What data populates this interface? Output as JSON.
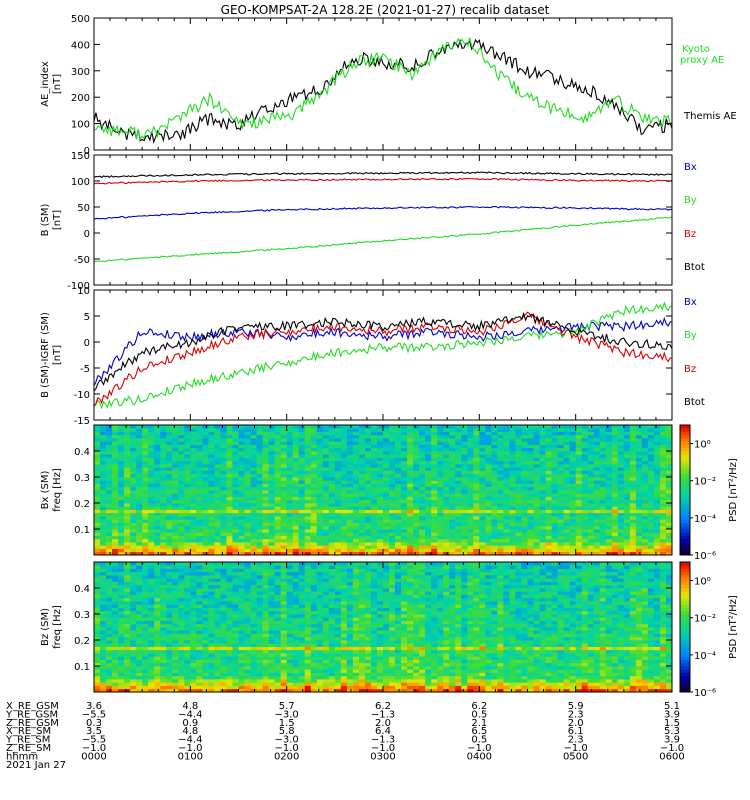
{
  "title": "GEO-KOMPSAT-2A 128.2E (2021-01-27) recalib dataset",
  "chart_data": [
    {
      "type": "line",
      "ylabel_lines": [
        "AE_index",
        "[nT]"
      ],
      "ylim": [
        0,
        500
      ],
      "yticks": [
        0,
        100,
        200,
        300,
        400,
        500
      ],
      "xlim": [
        0,
        6
      ],
      "x": [
        0,
        0.3,
        0.6,
        0.9,
        1.2,
        1.5,
        1.8,
        2.1,
        2.4,
        2.7,
        3.0,
        3.3,
        3.6,
        3.9,
        4.2,
        4.5,
        4.8,
        5.1,
        5.4,
        5.7,
        6.0
      ],
      "series": [
        {
          "name": "Themis AE",
          "color": "#000000",
          "values": [
            120,
            60,
            50,
            60,
            120,
            90,
            160,
            200,
            240,
            350,
            330,
            320,
            380,
            410,
            360,
            300,
            270,
            230,
            180,
            70,
            100
          ]
        },
        {
          "name": "Kyoto proxy AE",
          "color": "#22dd22",
          "values": [
            90,
            70,
            60,
            130,
            190,
            100,
            110,
            140,
            230,
            330,
            350,
            290,
            380,
            420,
            280,
            200,
            150,
            120,
            190,
            120,
            110
          ]
        }
      ],
      "legend_labels": [
        {
          "lines": [
            "Kyoto",
            "proxy AE"
          ],
          "color": "#22dd22"
        },
        {
          "lines": [
            "Themis AE"
          ],
          "color": "#000000"
        }
      ]
    },
    {
      "type": "line",
      "ylabel_lines": [
        "B (SM)",
        "[nT]"
      ],
      "ylim": [
        -100,
        150
      ],
      "yticks": [
        -100,
        -50,
        0,
        50,
        100,
        150
      ],
      "xlim": [
        0,
        6
      ],
      "x": [
        0,
        1,
        2,
        3,
        4,
        5,
        6
      ],
      "series": [
        {
          "name": "Bx",
          "color": "#0000cc",
          "values": [
            27,
            38,
            45,
            48,
            50,
            48,
            45
          ]
        },
        {
          "name": "By",
          "color": "#22dd22",
          "values": [
            -55,
            -42,
            -30,
            -15,
            -2,
            15,
            30
          ]
        },
        {
          "name": "Bz",
          "color": "#dd0000",
          "values": [
            95,
            100,
            102,
            103,
            104,
            101,
            100
          ]
        },
        {
          "name": "Btot",
          "color": "#000000",
          "values": [
            108,
            112,
            114,
            115,
            116,
            114,
            112
          ]
        }
      ]
    },
    {
      "type": "line",
      "ylabel_lines": [
        "B (SM)-IGRF (SM)",
        "[nT]"
      ],
      "ylim": [
        -15,
        10
      ],
      "yticks": [
        -15,
        -10,
        -5,
        0,
        5,
        10
      ],
      "xlim": [
        0,
        6
      ],
      "x": [
        0,
        0.5,
        1,
        1.5,
        2,
        2.5,
        3,
        3.5,
        4,
        4.5,
        5,
        5.5,
        6
      ],
      "series": [
        {
          "name": "Bx",
          "color": "#0000cc",
          "values": [
            -8,
            2,
            1,
            2,
            1,
            2,
            1,
            2,
            1,
            2,
            3,
            3,
            4
          ]
        },
        {
          "name": "By",
          "color": "#22dd22",
          "values": [
            -12,
            -11,
            -8,
            -6,
            -4,
            -2,
            -1,
            -1,
            0,
            1,
            2,
            6,
            7
          ]
        },
        {
          "name": "Bz",
          "color": "#dd0000",
          "values": [
            -12,
            -5,
            -2,
            1,
            2,
            3,
            2,
            3,
            2,
            5,
            1,
            -2,
            -3
          ]
        },
        {
          "name": "Btot",
          "color": "#000000",
          "values": [
            -9,
            -2,
            0,
            3,
            3,
            4,
            3,
            4,
            3,
            5,
            2,
            0,
            -1
          ]
        }
      ]
    },
    {
      "type": "heatmap",
      "ylabel_lines": [
        "Bx (SM)",
        "freq [Hz]"
      ],
      "ylim": [
        0,
        0.5
      ],
      "yticks": [
        0.1,
        0.2,
        0.3,
        0.4
      ],
      "xlim": [
        0,
        6
      ],
      "zlim_log10": [
        -6,
        1
      ],
      "colorbar_label": "PSD [nT²/Hz]",
      "colorbar_ticks": [
        {
          "label": "10⁰",
          "log10": 0
        },
        {
          "label": "10⁻²",
          "log10": -2
        },
        {
          "label": "10⁻⁴",
          "log10": -4
        },
        {
          "label": "10⁻⁶",
          "log10": -6
        }
      ]
    },
    {
      "type": "heatmap",
      "ylabel_lines": [
        "Bz (SM)",
        "freq [Hz]"
      ],
      "ylim": [
        0,
        0.5
      ],
      "yticks": [
        0.1,
        0.2,
        0.3,
        0.4
      ],
      "xlim": [
        0,
        6
      ],
      "zlim_log10": [
        -6,
        1
      ],
      "colorbar_label": "PSD [nT²/Hz]",
      "colorbar_ticks": [
        {
          "label": "10⁰",
          "log10": 0
        },
        {
          "label": "10⁻²",
          "log10": -2
        },
        {
          "label": "10⁻⁴",
          "log10": -4
        },
        {
          "label": "10⁻⁶",
          "log10": -6
        }
      ]
    }
  ],
  "orbit_table": {
    "rows": [
      {
        "label": "X_RE_GSM",
        "values": [
          "3.6",
          "4.8",
          "5.7",
          "6.2",
          "6.2",
          "5.9",
          "5.1"
        ]
      },
      {
        "label": "Y_RE_GSM",
        "values": [
          "−5.5",
          "−4.4",
          "−3.0",
          "−1.3",
          "0.5",
          "2.3",
          "3.9"
        ]
      },
      {
        "label": "Z_RE_GSM",
        "values": [
          "0.3",
          "0.9",
          "1.5",
          "2.0",
          "2.1",
          "2.0",
          "1.5"
        ]
      },
      {
        "label": "X_RE_SM",
        "values": [
          "3.5",
          "4.8",
          "5.8",
          "6.4",
          "6.5",
          "6.1",
          "5.3"
        ]
      },
      {
        "label": "Y_RE_SM",
        "values": [
          "−5.5",
          "−4.4",
          "−3.0",
          "−1.3",
          "0.5",
          "2.3",
          "3.9"
        ]
      },
      {
        "label": "Z_RE_SM",
        "values": [
          "−1.0",
          "−1.0",
          "−1.0",
          "−1.0",
          "−1.0",
          "−1.0",
          "−1.0"
        ]
      },
      {
        "label": "hhmm",
        "values": [
          "0000",
          "0100",
          "0200",
          "0300",
          "0400",
          "0500",
          "0600"
        ]
      }
    ],
    "date": "2021 Jan 27"
  }
}
